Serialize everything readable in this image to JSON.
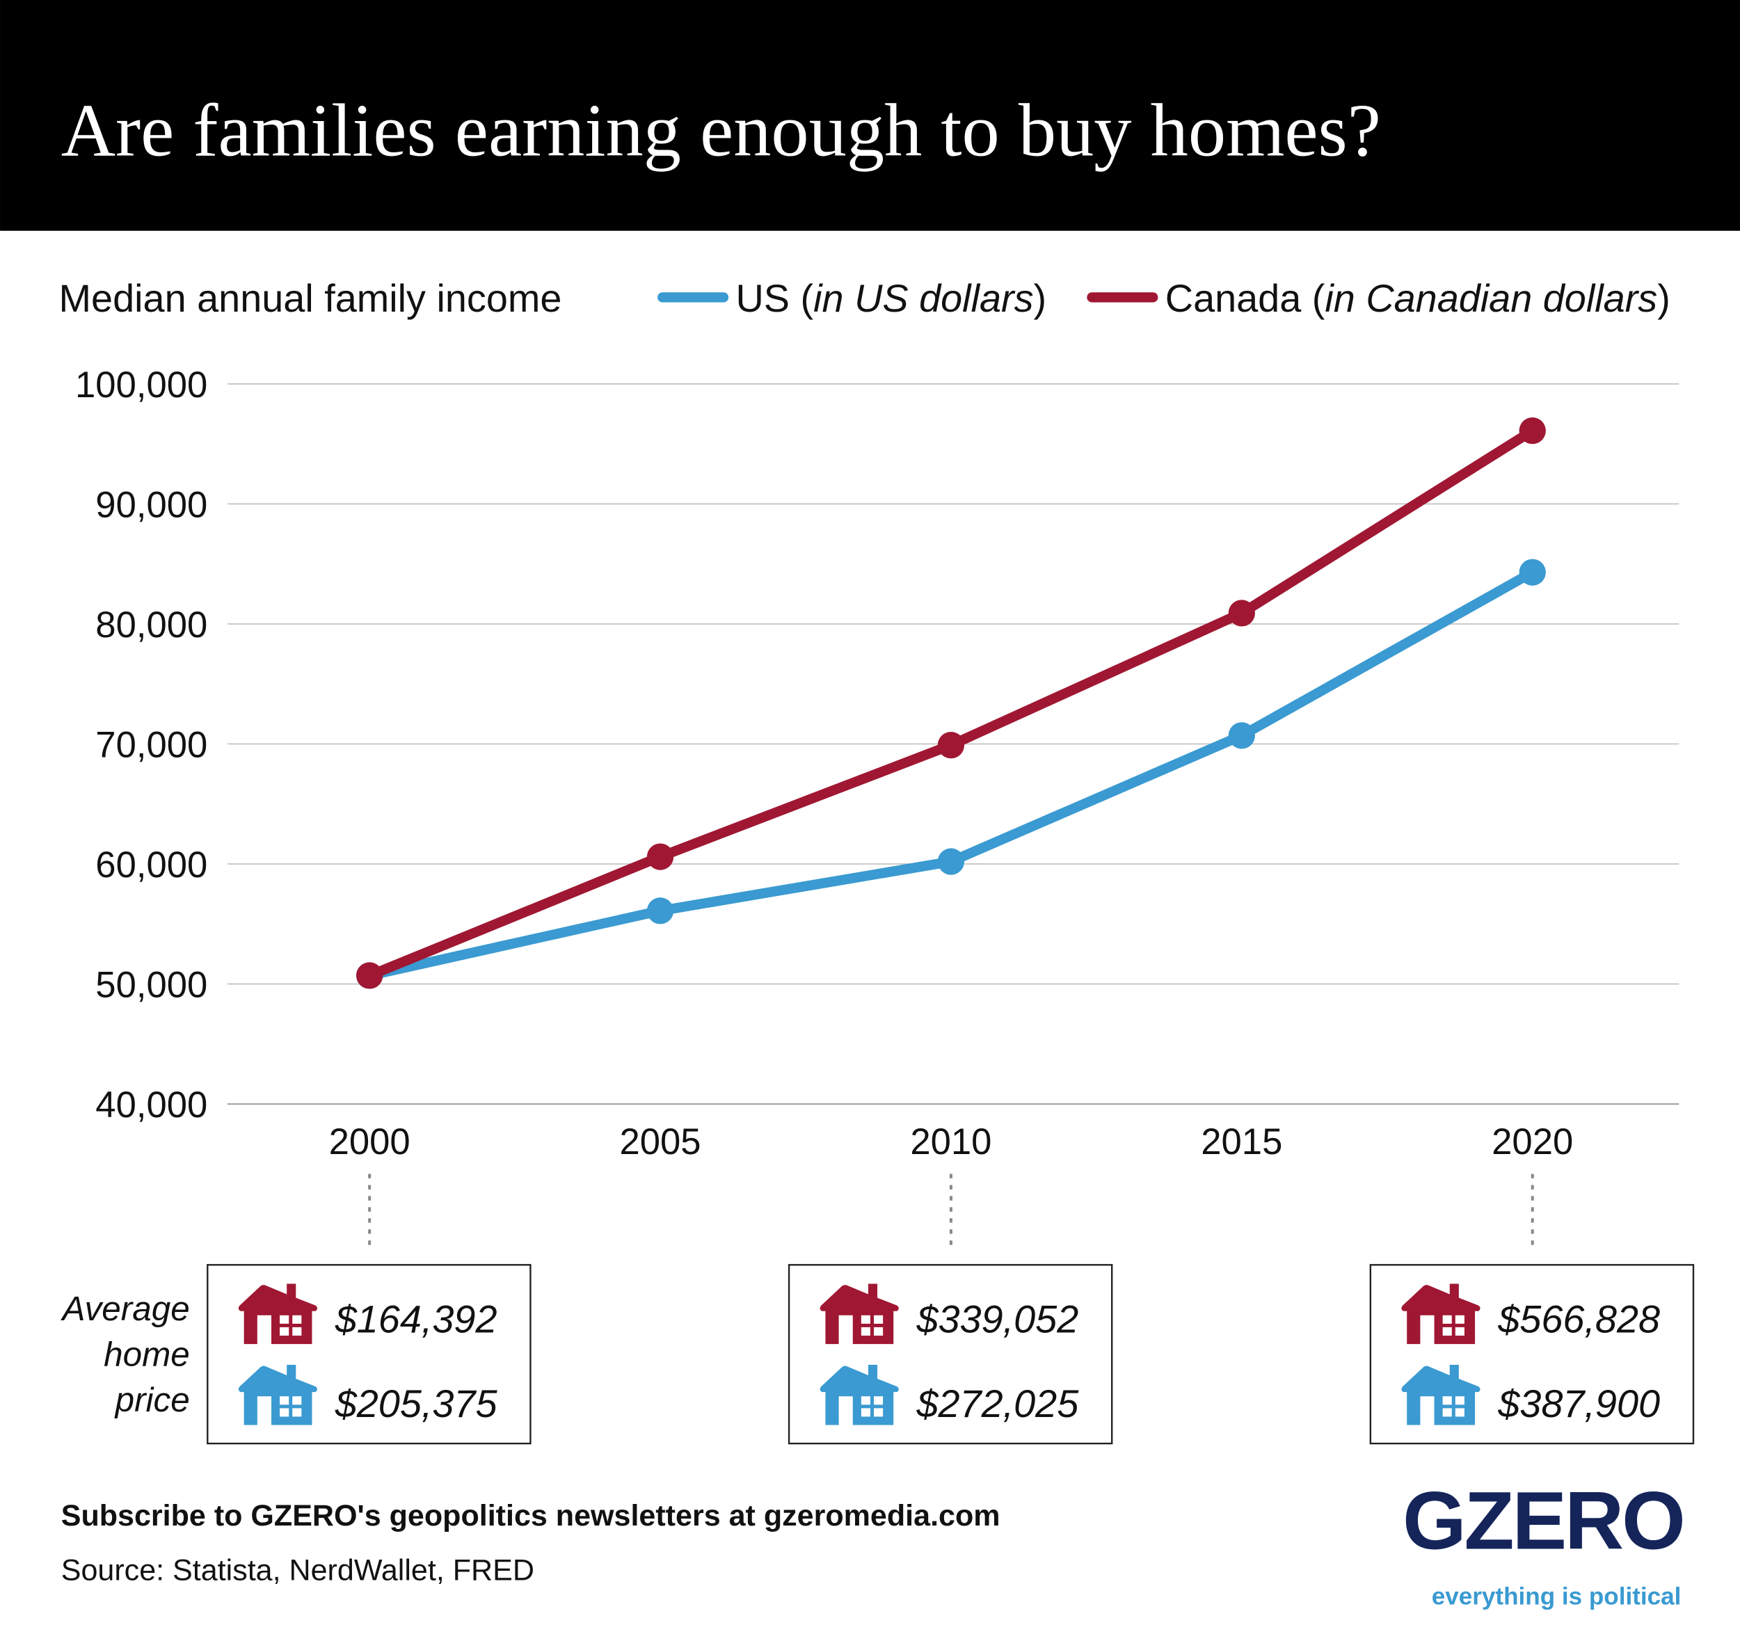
{
  "header": {
    "title": "Are families earning enough to buy homes?"
  },
  "legend": {
    "label": "Median annual family income",
    "us_name": "US (",
    "us_italic": "in US dollars",
    "us_close": ")",
    "ca_name": "Canada (",
    "ca_italic": "in Canadian dollars",
    "ca_close": ")"
  },
  "colors": {
    "us": "#3a9ad1",
    "canada": "#a01733",
    "header_bg": "#000000",
    "logo": "#15255a",
    "tagline": "#3a9ad1"
  },
  "chart_data": {
    "type": "line",
    "title": "Are families earning enough to buy homes?",
    "ylabel": "Median annual family income",
    "x": [
      2000,
      2005,
      2010,
      2015,
      2020
    ],
    "x_tick_labels": [
      "2000",
      "2005",
      "2010",
      "2015",
      "2020"
    ],
    "ylim": [
      40000,
      100000
    ],
    "y_ticks": [
      40000,
      50000,
      60000,
      70000,
      80000,
      90000,
      100000
    ],
    "y_tick_labels": [
      "40,000",
      "50,000",
      "60,000",
      "70,000",
      "80,000",
      "90,000",
      "100,000"
    ],
    "grid": true,
    "legend_position": "top",
    "series": [
      {
        "name": "US (in US dollars)",
        "color": "#3a9ad1",
        "values": [
          50700,
          56100,
          60200,
          70700,
          84300
        ]
      },
      {
        "name": "Canada (in Canadian dollars)",
        "color": "#a01733",
        "values": [
          50700,
          60600,
          69900,
          80900,
          96100
        ]
      }
    ]
  },
  "home_prices": {
    "label_lines": [
      "Average",
      "home",
      "price"
    ],
    "boxes": [
      {
        "year": 2000,
        "canada": "$164,392",
        "us": "$205,375"
      },
      {
        "year": 2010,
        "canada": "$339,052",
        "us": "$272,025"
      },
      {
        "year": 2020,
        "canada": "$566,828",
        "us": "$387,900"
      }
    ]
  },
  "footer": {
    "subscribe": "Subscribe to GZERO's geopolitics newsletters at gzeromedia.com",
    "source": "Source: Statista, NerdWallet, FRED",
    "logo": "GZERO",
    "tagline": "everything is political"
  }
}
